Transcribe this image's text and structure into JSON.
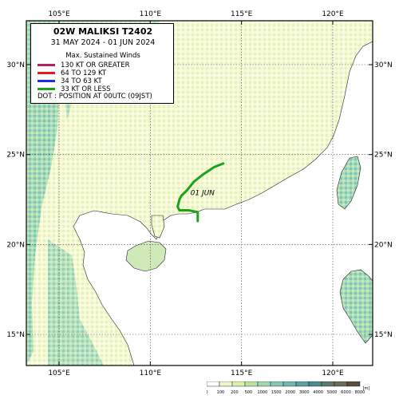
{
  "legend": {
    "title": "02W  MALIKSI  T2402",
    "dates": "31 MAY 2024 - 01 JUN 2024",
    "subtitle": "Max. Sustained Winds",
    "items": [
      {
        "label": "130 KT OR GREATER",
        "color": "#b3205a"
      },
      {
        "label": "64 TO 129 KT",
        "color": "#e8181c"
      },
      {
        "label": "34 TO 63 KT",
        "color": "#1c2ee8"
      },
      {
        "label": "33 KT OR LESS",
        "color": "#19a319"
      }
    ],
    "dot_note": "DOT : POSITION AT 00UTC (09JST)"
  },
  "axes": {
    "lon_labels": [
      "105°E",
      "110°E",
      "115°E",
      "120°E"
    ],
    "lat_labels": [
      "30°N",
      "25°N",
      "20°N",
      "15°N"
    ]
  },
  "track": {
    "annotation": "01 JUN",
    "color": "#19a319",
    "points": [
      [
        112.6,
        21.3
      ],
      [
        112.6,
        21.8
      ],
      [
        112.1,
        21.9
      ],
      [
        111.8,
        21.9
      ],
      [
        111.6,
        21.9
      ],
      [
        111.5,
        22.1
      ],
      [
        111.6,
        22.5
      ],
      [
        111.7,
        22.7
      ],
      [
        112.0,
        23.0
      ],
      [
        112.4,
        23.5
      ],
      [
        112.9,
        23.9
      ],
      [
        113.5,
        24.3
      ],
      [
        114.0,
        24.5
      ]
    ]
  },
  "elevation_scale": {
    "ticks": [
      "0",
      "100",
      "200",
      "500",
      "1000",
      "1500",
      "2000",
      "3000",
      "4000",
      "5000",
      "6000",
      "8000"
    ],
    "unit": "[m]",
    "colors": [
      "#ffffff",
      "#f3f6cc",
      "#dbf0a8",
      "#b8e3a3",
      "#9fd7b0",
      "#84c9b8",
      "#6fbab0",
      "#5ea3a0",
      "#4c8c8c",
      "#5f7a6a",
      "#6d6e5a",
      "#5a4e3e"
    ]
  }
}
